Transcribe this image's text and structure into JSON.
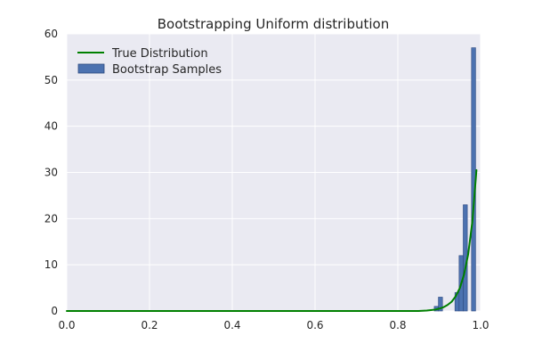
{
  "chart_data": {
    "type": "bar",
    "title": "Bootstrapping Uniform distribution",
    "xlabel": "",
    "ylabel": "",
    "xlim": [
      0.0,
      1.0
    ],
    "ylim": [
      0,
      60
    ],
    "x_ticks": [
      "0.0",
      "0.2",
      "0.4",
      "0.6",
      "0.8",
      "1.0"
    ],
    "y_ticks": [
      "0",
      "10",
      "20",
      "30",
      "40",
      "50",
      "60"
    ],
    "grid": true,
    "legend_position": "top-left",
    "colors": {
      "plot_background": "#EAEAF2",
      "grid": "#FFFFFF",
      "bar_fill": "#4C72B0",
      "bar_edge": "#2E4A80",
      "line": "#008000"
    },
    "series": [
      {
        "name": "Bootstrap Samples",
        "kind": "histogram",
        "bins": [
          {
            "x0": 0.888,
            "x1": 0.898,
            "value": 1
          },
          {
            "x0": 0.898,
            "x1": 0.908,
            "value": 3
          },
          {
            "x0": 0.908,
            "x1": 0.918,
            "value": 0
          },
          {
            "x0": 0.918,
            "x1": 0.928,
            "value": 0
          },
          {
            "x0": 0.928,
            "x1": 0.938,
            "value": 0
          },
          {
            "x0": 0.938,
            "x1": 0.948,
            "value": 4
          },
          {
            "x0": 0.948,
            "x1": 0.958,
            "value": 12
          },
          {
            "x0": 0.958,
            "x1": 0.968,
            "value": 23
          },
          {
            "x0": 0.968,
            "x1": 0.978,
            "value": 0
          },
          {
            "x0": 0.978,
            "x1": 0.988,
            "value": 57
          }
        ]
      },
      {
        "name": "True Distribution",
        "kind": "line",
        "x": [
          0.0,
          0.5,
          0.85,
          0.87,
          0.88,
          0.89,
          0.9,
          0.91,
          0.92,
          0.93,
          0.94,
          0.95,
          0.96,
          0.97,
          0.98,
          0.99
        ],
        "y": [
          0.0,
          0.0,
          0.0,
          0.1,
          0.2,
          0.3,
          0.5,
          0.8,
          1.3,
          2.0,
          3.2,
          5.0,
          7.9,
          12.3,
          19.3,
          30.5
        ]
      }
    ]
  }
}
